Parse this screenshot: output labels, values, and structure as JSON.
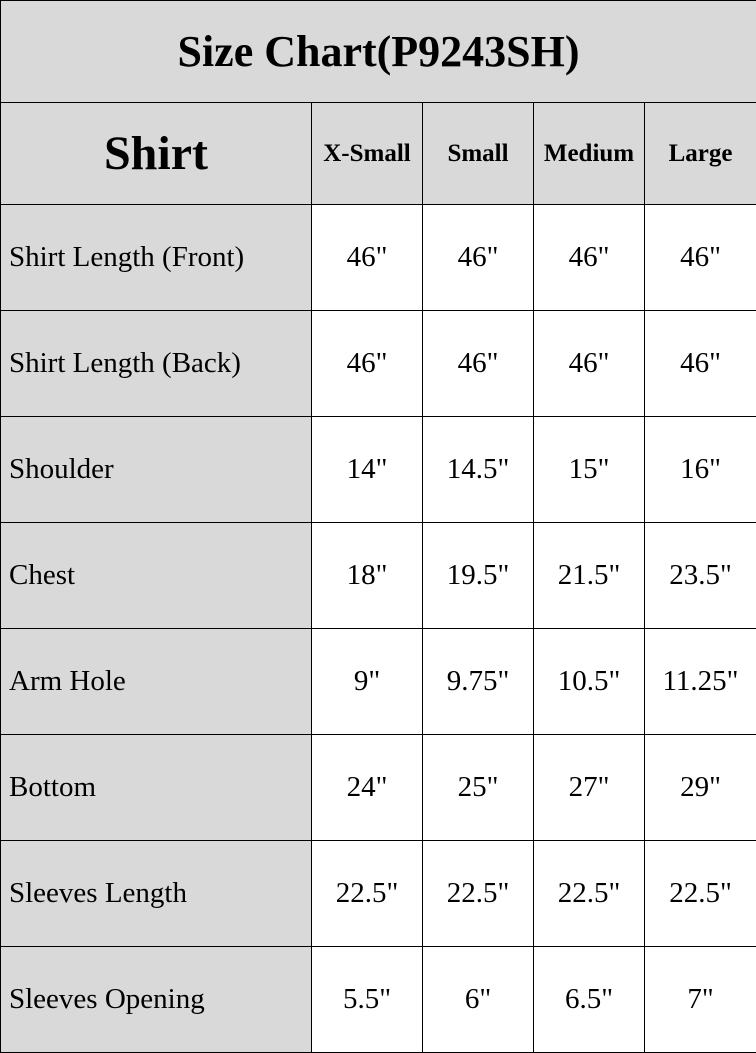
{
  "title": "Size Chart(P9243SH)",
  "header": [
    "Shirt",
    "X-Small",
    "Small",
    "Medium",
    "Large"
  ],
  "rows": [
    {
      "label": "Shirt Length (Front)",
      "values": [
        "46\"",
        "46\"",
        "46\"",
        "46\""
      ]
    },
    {
      "label": "Shirt Length (Back)",
      "values": [
        "46\"",
        "46\"",
        "46\"",
        "46\""
      ]
    },
    {
      "label": "Shoulder",
      "values": [
        "14\"",
        "14.5\"",
        "15\"",
        "16\""
      ]
    },
    {
      "label": "Chest",
      "values": [
        "18\"",
        "19.5\"",
        "21.5\"",
        "23.5\""
      ]
    },
    {
      "label": "Arm Hole",
      "values": [
        "9\"",
        "9.75\"",
        "10.5\"",
        "11.25\""
      ]
    },
    {
      "label": "Bottom",
      "values": [
        "24\"",
        "25\"",
        "27\"",
        "29\""
      ]
    },
    {
      "label": "Sleeves Length",
      "values": [
        "22.5\"",
        "22.5\"",
        "22.5\"",
        "22.5\""
      ]
    },
    {
      "label": "Sleeves Opening",
      "values": [
        "5.5\"",
        "6\"",
        "6.5\"",
        "7\""
      ]
    }
  ],
  "colors": {
    "header_bg": "#d9d9d9",
    "cell_bg": "#ffffff",
    "border": "#000000"
  }
}
